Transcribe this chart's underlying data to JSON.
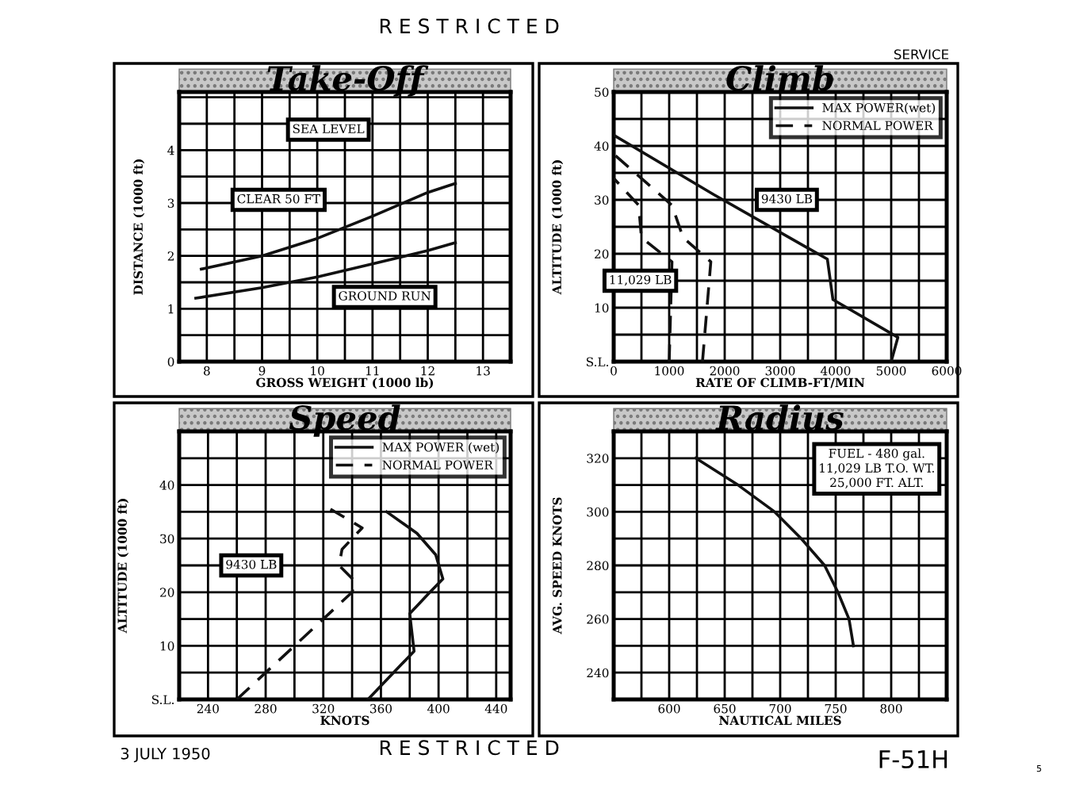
{
  "chart_data": [
    {
      "type": "line",
      "title": "Take-Off",
      "xlabel": "GROSS WEIGHT (1000 lb)",
      "ylabel": "DISTANCE (1000 ft)",
      "xlim": [
        7.5,
        13.5
      ],
      "ylim": [
        0,
        5.1
      ],
      "xticks": [
        8,
        {
          "value": 8.5,
          "label": null
        },
        9,
        {
          "value": 9.5,
          "label": null
        },
        10,
        {
          "value": 10.5,
          "label": null
        },
        11,
        {
          "value": 11.5,
          "label": null
        },
        12,
        {
          "value": 12.5,
          "label": null
        },
        13
      ],
      "yticks": [
        0,
        {
          "value": 0.5,
          "label": null
        },
        1,
        {
          "value": 1.5,
          "label": null
        },
        2,
        {
          "value": 2.5,
          "label": null
        },
        3,
        {
          "value": 3.5,
          "label": null
        },
        4,
        {
          "value": 4.5,
          "label": null
        },
        {
          "value": 5,
          "label": null
        }
      ],
      "grid": true,
      "line_style": "solid",
      "marker": "none",
      "series": [
        {
          "color": "#111111",
          "x": [
            7.9,
            9,
            10,
            11,
            12,
            12.5
          ],
          "values": [
            1.75,
            2.0,
            2.33,
            2.75,
            3.2,
            3.37
          ]
        },
        {
          "color": "#111111",
          "x": [
            7.8,
            9,
            10,
            11,
            12,
            12.5
          ],
          "values": [
            1.2,
            1.4,
            1.6,
            1.85,
            2.1,
            2.25
          ]
        }
      ],
      "annotations": [
        "SEA LEVEL",
        "CLEAR 50 FT",
        "GROUND RUN"
      ]
    },
    {
      "type": "line",
      "title": "Climb",
      "xlabel": "RATE OF CLIMB-FT/MIN",
      "ylabel": "ALTITUDE (1000 ft)",
      "xlim": [
        0,
        6000
      ],
      "ylim": [
        0,
        50
      ],
      "xticks": [
        0,
        {
          "value": 500,
          "label": null
        },
        1000,
        {
          "value": 1500,
          "label": null
        },
        2000,
        {
          "value": 2500,
          "label": null
        },
        3000,
        {
          "value": 3500,
          "label": null
        },
        4000,
        {
          "value": 4500,
          "label": null
        },
        5000,
        {
          "value": 5500,
          "label": null
        },
        6000
      ],
      "yticks": [
        {
          "value": 0,
          "label": "S.L."
        },
        {
          "value": 5,
          "label": null
        },
        10,
        {
          "value": 15,
          "label": null
        },
        20,
        {
          "value": 25,
          "label": null
        },
        30,
        {
          "value": 35,
          "label": null
        },
        40,
        {
          "value": 45,
          "label": null
        },
        50
      ],
      "grid": true,
      "legend": "top right",
      "marker": "none",
      "series": [
        {
          "name": "MAX POWER(wet)",
          "color": "#111111",
          "line_style": "solid",
          "x": [
            5000,
            5120,
            3950,
            3850,
            1800,
            0
          ],
          "values": [
            0,
            4.5,
            11.5,
            19,
            31,
            42
          ]
        },
        {
          "name": "NORMAL POWER",
          "color": "#111111",
          "line_style": "dashed",
          "x": [
            1600,
            1750,
            1250,
            1050,
            0
          ],
          "values": [
            0,
            18.5,
            23,
            29,
            38.5
          ]
        },
        {
          "color": "#111111",
          "line_style": "dashed",
          "x": [
            1000,
            1050,
            500,
            450,
            0
          ],
          "values": [
            0,
            18.5,
            23,
            29,
            34
          ]
        }
      ],
      "annotations": [
        "9430 LB",
        "11,029 LB"
      ]
    },
    {
      "type": "line",
      "title": "Speed",
      "xlabel": "KNOTS",
      "ylabel": "ALTITUDE (1000 ft)",
      "xlim": [
        220,
        450
      ],
      "ylim": [
        0,
        50
      ],
      "xticks": [
        240,
        {
          "value": 260,
          "label": null
        },
        280,
        {
          "value": 300,
          "label": null
        },
        320,
        {
          "value": 340,
          "label": null
        },
        360,
        {
          "value": 380,
          "label": null
        },
        400,
        {
          "value": 420,
          "label": null
        },
        440
      ],
      "yticks": [
        {
          "value": 0,
          "label": "S.L."
        },
        {
          "value": 5,
          "label": null
        },
        10,
        {
          "value": 15,
          "label": null
        },
        20,
        {
          "value": 25,
          "label": null
        },
        30,
        {
          "value": 35,
          "label": null
        },
        40,
        {
          "value": 45,
          "label": null
        }
      ],
      "grid": true,
      "legend": "top right",
      "marker": "none",
      "series": [
        {
          "name": "MAX POWER (wet)",
          "color": "#111111",
          "line_style": "solid",
          "x": [
            351,
            383,
            380,
            394,
            403,
            398,
            385,
            364
          ],
          "values": [
            0,
            9,
            16,
            20,
            22.5,
            27,
            31,
            35
          ]
        },
        {
          "name": "NORMAL POWER",
          "color": "#111111",
          "line_style": "dashed",
          "x": [
            260,
            340,
            342,
            331,
            333,
            347,
            325
          ],
          "values": [
            0,
            20,
            22,
            25,
            28,
            32,
            35.5
          ]
        }
      ],
      "annotations": [
        {
          "text": "9430 LB",
          "x": 270,
          "y": 25
        }
      ]
    },
    {
      "type": "line",
      "title": "Radius",
      "xlabel": "NAUTICAL MILES",
      "ylabel": "AVG. SPEED KNOTS",
      "xlim": [
        550,
        850
      ],
      "ylim": [
        230,
        330
      ],
      "xticks": [
        {
          "value": 575,
          "label": null
        },
        600,
        {
          "value": 625,
          "label": null
        },
        650,
        {
          "value": 675,
          "label": null
        },
        700,
        {
          "value": 725,
          "label": null
        },
        750,
        {
          "value": 775,
          "label": null
        },
        800,
        {
          "value": 825,
          "label": null
        }
      ],
      "yticks": [
        240,
        {
          "value": 250,
          "label": null
        },
        260,
        {
          "value": 270,
          "label": null
        },
        280,
        {
          "value": 290,
          "label": null
        },
        300,
        {
          "value": 310,
          "label": null
        },
        320
      ],
      "grid": true,
      "line_style": "solid",
      "marker": "none",
      "series": [
        {
          "color": "#111111",
          "x": [
            624,
            662,
            695,
            719,
            740,
            752,
            762,
            766
          ],
          "values": [
            320,
            310,
            300,
            290,
            280,
            270,
            260,
            250
          ]
        }
      ],
      "annotations": [
        "FUEL - 480 gal.\n11,029 LB T.O. WT.\n25,000 FT. ALT."
      ]
    },
    {
      "type": "other",
      "annotations": [
        "R E S T R I C T E D",
        "SERVICE",
        "3 JULY 1950",
        "R E S T R I C T E D",
        "F-51H",
        "5"
      ]
    }
  ]
}
